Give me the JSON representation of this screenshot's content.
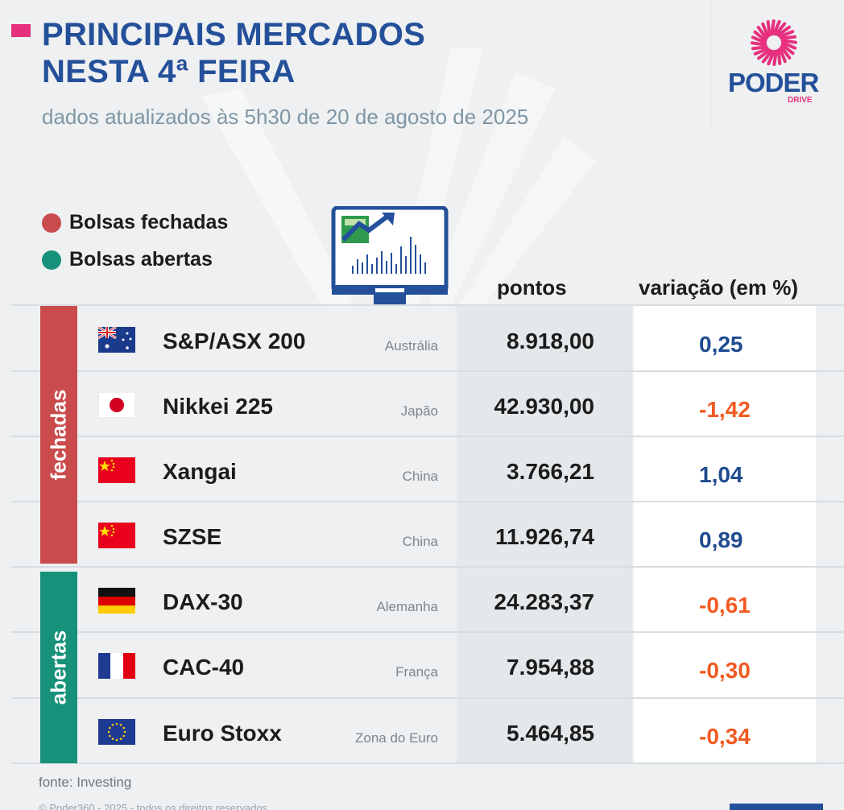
{
  "header": {
    "title_line1": "PRINCIPAIS MERCADOS",
    "title_line2": "NESTA 4ª FEIRA",
    "subtitle": "dados atualizados às 5h30 de 20 de agosto de 2025"
  },
  "logo": {
    "brand": "PODER",
    "sub": "DRIVE"
  },
  "legend": {
    "closed": "Bolsas fechadas",
    "open": "Bolsas abertas"
  },
  "columns": {
    "points": "pontos",
    "change": "variação (em %)"
  },
  "groups": {
    "closed": "fechadas",
    "open": "abertas"
  },
  "colors": {
    "accent": "#e6307e",
    "brand_blue": "#24509a",
    "closed": "#c94b4b",
    "open": "#17917a",
    "positive": "#1f4b8f",
    "negative": "#f15a22"
  },
  "rows": [
    {
      "flag": "australia-flag-icon",
      "name": "S&P/ASX 200",
      "country": "Austrália",
      "points": "8.918,00",
      "change": "0,25",
      "direction": "positive"
    },
    {
      "flag": "japan-flag-icon",
      "name": "Nikkei 225",
      "country": "Japão",
      "points": "42.930,00",
      "change": "-1,42",
      "direction": "negative"
    },
    {
      "flag": "china-flag-icon",
      "name": "Xangai",
      "country": "China",
      "points": "3.766,21",
      "change": "1,04",
      "direction": "positive"
    },
    {
      "flag": "china-flag-icon",
      "name": "SZSE",
      "country": "China",
      "points": "11.926,74",
      "change": "0,89",
      "direction": "positive"
    },
    {
      "flag": "germany-flag-icon",
      "name": "DAX-30",
      "country": "Alemanha",
      "points": "24.283,37",
      "change": "-0,61",
      "direction": "negative"
    },
    {
      "flag": "france-flag-icon",
      "name": "CAC-40",
      "country": "França",
      "points": "7.954,88",
      "change": "-0,30",
      "direction": "negative"
    },
    {
      "flag": "eu-flag-icon",
      "name": "Euro Stoxx",
      "country": "Zona do Euro",
      "points": "5.464,85",
      "change": "-0,34",
      "direction": "negative"
    }
  ],
  "footer": {
    "source": "fonte: Investing",
    "copyright": "© Poder360 - 2025 - todos os direitos reservados"
  }
}
